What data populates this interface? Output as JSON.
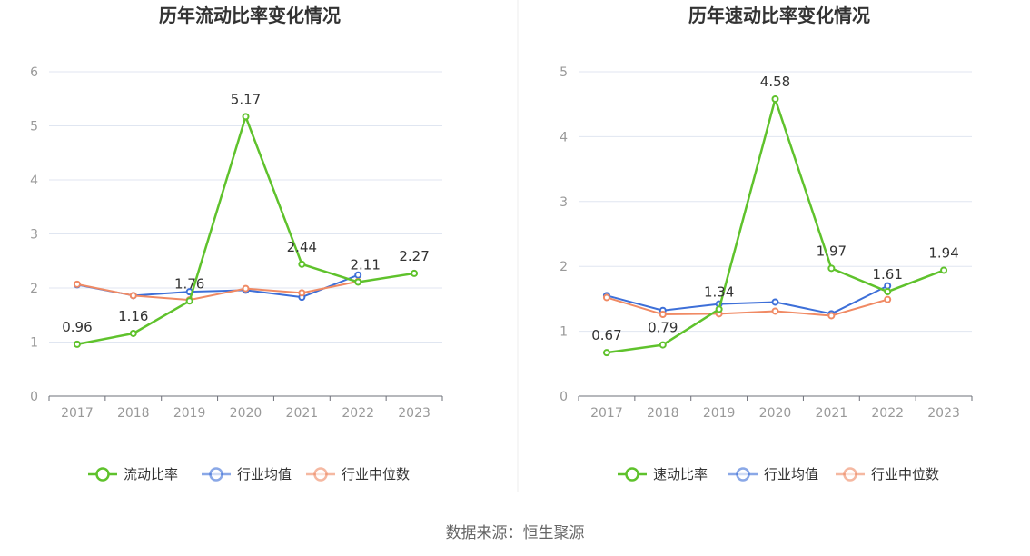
{
  "source": "数据来源：恒生聚源",
  "colors": {
    "main": "#5fc22c",
    "avg": "#3d6fd8",
    "median": "#f08a64"
  },
  "chart_data": [
    {
      "type": "line",
      "title": "历年流动比率变化情况",
      "categories": [
        "2017",
        "2018",
        "2019",
        "2020",
        "2021",
        "2022",
        "2023"
      ],
      "ylim": [
        0,
        6
      ],
      "yticks": [
        "0",
        "1",
        "2",
        "3",
        "4",
        "5",
        "6"
      ],
      "grid": true,
      "legend_position": "bottom",
      "series": [
        {
          "name": "流动比率",
          "color": "#5fc22c",
          "values": [
            0.96,
            1.16,
            1.76,
            5.17,
            2.44,
            2.11,
            2.27
          ],
          "labels": [
            "0.96",
            "1.16",
            "1.76",
            "5.17",
            "2.44",
            "2.11",
            "2.27"
          ]
        },
        {
          "name": "行业均值",
          "color": "#3d6fd8",
          "values": [
            2.06,
            1.86,
            1.93,
            1.96,
            1.83,
            2.24,
            null
          ]
        },
        {
          "name": "行业中位数",
          "color": "#f08a64",
          "values": [
            2.07,
            1.86,
            1.78,
            1.99,
            1.91,
            2.12,
            null
          ]
        }
      ]
    },
    {
      "type": "line",
      "title": "历年速动比率变化情况",
      "categories": [
        "2017",
        "2018",
        "2019",
        "2020",
        "2021",
        "2022",
        "2023"
      ],
      "ylim": [
        0,
        5
      ],
      "yticks": [
        "0",
        "1",
        "2",
        "3",
        "4",
        "5"
      ],
      "grid": true,
      "legend_position": "bottom",
      "series": [
        {
          "name": "速动比率",
          "color": "#5fc22c",
          "values": [
            0.67,
            0.79,
            1.34,
            4.58,
            1.97,
            1.61,
            1.94
          ],
          "labels": [
            "0.67",
            "0.79",
            "1.34",
            "4.58",
            "1.97",
            "1.61",
            "1.94"
          ]
        },
        {
          "name": "行业均值",
          "color": "#3d6fd8",
          "values": [
            1.55,
            1.32,
            1.42,
            1.45,
            1.27,
            1.7,
            null
          ]
        },
        {
          "name": "行业中位数",
          "color": "#f08a64",
          "values": [
            1.52,
            1.26,
            1.27,
            1.31,
            1.24,
            1.49,
            null
          ]
        }
      ]
    }
  ]
}
